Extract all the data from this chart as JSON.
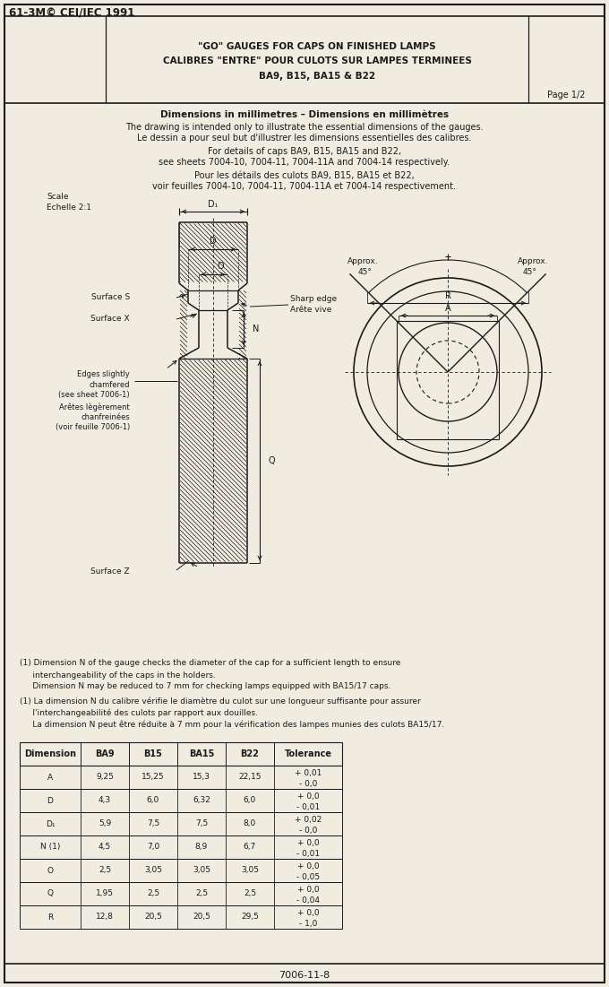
{
  "title_line": "61-3M© CEI/IEC 1991",
  "header_line1": "\"GO\" GAUGES FOR CAPS ON FINISHED LAMPS",
  "header_line2": "CALIBRES \"ENTRE\" POUR CULOTS SUR LAMPES TERMINEES",
  "header_line3": "BA9, B15, BA15 & B22",
  "page": "Page 1/2",
  "desc1": "Dimensions in millimetres – Dimensions en millimètres",
  "desc2": "The drawing is intended only to illustrate the essential dimensions of the gauges.",
  "desc3": "Le dessin a pour seul but d'illustrer les dimensions essentielles des calibres.",
  "desc4": "For details of caps BA9, B15, BA15 and B22,",
  "desc5": "see sheets 7004-10, 7004-11, 7004-11A and 7004-14 respectively.",
  "desc6": "Pour les détails des culots BA9, B15, BA15 et B22,",
  "desc7": "voir feuilles 7004-10, 7004-11, 7004-11A et 7004-14 respectivement.",
  "note1_en": "(1) Dimension N of the gauge checks the diameter of the cap for a sufficient length to ensure",
  "note1_en2": "     interchangeability of the caps in the holders.",
  "note1_en3": "     Dimension N may be reduced to 7 mm for checking lamps equipped with BA15/17 caps.",
  "note1_fr": "(1) La dimension N du calibre vérifie le diamètre du culot sur une longueur suffisante pour assurer",
  "note1_fr2": "     l'interchangeabilité des culots par rapport aux douilles.",
  "note1_fr3": "     La dimension N peut être réduite à 7 mm pour la vérification des lampes munies des culots BA15/17.",
  "footer": "7006-11-8",
  "bg_color": "#f0ece0",
  "line_color": "#1a1a1a",
  "table_headers": [
    "Dimension",
    "BA9",
    "B15",
    "BA15",
    "B22",
    "Tolerance"
  ],
  "table_rows": [
    [
      "A",
      "9,25",
      "15,25",
      "15,3",
      "22,15",
      "+ 0,01\n- 0,0"
    ],
    [
      "D",
      "4,3",
      "6,0",
      "6,32",
      "6,0",
      "+ 0,0\n- 0,01"
    ],
    [
      "D₁",
      "5,9",
      "7,5",
      "7,5",
      "8,0",
      "+ 0,02\n- 0,0"
    ],
    [
      "N (1)",
      "4,5",
      "7,0",
      "8,9",
      "6,7",
      "+ 0,0\n- 0,01"
    ],
    [
      "O",
      "2,5",
      "3,05",
      "3,05",
      "3,05",
      "+ 0,0\n- 0,05"
    ],
    [
      "Q",
      "1,95",
      "2,5",
      "2,5",
      "2,5",
      "+ 0,0\n- 0,04"
    ],
    [
      "R",
      "12,8",
      "20,5",
      "20,5",
      "29,5",
      "+ 0,0\n- 1,0"
    ]
  ]
}
